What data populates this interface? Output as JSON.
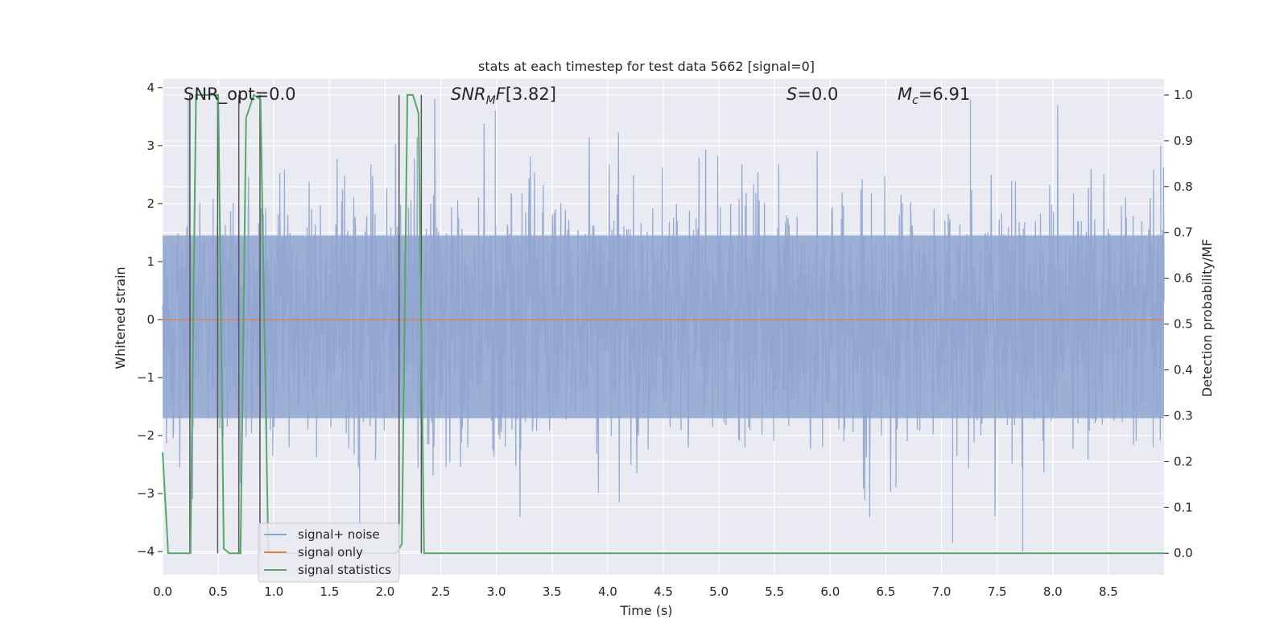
{
  "chart_data": {
    "type": "line",
    "title": "stats at each timestep for test data 5662 [signal=0]",
    "xlabel": "Time (s)",
    "ylabel": "Whitened strain",
    "y2label": "Detection probability/MF",
    "xlim": [
      0.0,
      9.0
    ],
    "ylim": [
      -4.4,
      4.15
    ],
    "y2lim": [
      -0.047,
      1.035
    ],
    "x_ticks": [
      "0.0",
      "0.5",
      "1.0",
      "1.5",
      "2.0",
      "2.5",
      "3.0",
      "3.5",
      "4.0",
      "4.5",
      "5.0",
      "5.5",
      "6.0",
      "6.5",
      "7.0",
      "7.5",
      "8.0",
      "8.5"
    ],
    "y_ticks": [
      "4",
      "3",
      "2",
      "1",
      "0",
      "−1",
      "−2",
      "−3",
      "−4"
    ],
    "y2_ticks": [
      "1.0",
      "0.9",
      "0.8",
      "0.7",
      "0.6",
      "0.5",
      "0.4",
      "0.3",
      "0.2",
      "0.1",
      "0.0"
    ],
    "grid": true,
    "legend_position": "lower-left",
    "annotations": {
      "snr_opt": "SNR_opt=0.0",
      "snr_mf": "[3.82]",
      "s_value": "=0.0",
      "mc_value": "=6.91"
    },
    "series": [
      {
        "name": "signal+ noise",
        "color": "#8fa5cf",
        "description_axis": "left",
        "noise_envelope": {
          "x_start": 0.0,
          "x_end": 9.0,
          "dense_band": [
            -1.7,
            1.45
          ],
          "typical_peak": [
            -3.4,
            3.8
          ]
        },
        "notable_spikes": [
          {
            "x": 0.23,
            "y": 3.8
          },
          {
            "x": 0.27,
            "y": -3.1
          },
          {
            "x": 1.77,
            "y": -3.6
          },
          {
            "x": 7.26,
            "y": 3.8
          },
          {
            "x": 7.73,
            "y": -4.0
          },
          {
            "x": 7.1,
            "y": -3.85
          },
          {
            "x": 2.99,
            "y": 3.6
          },
          {
            "x": 8.97,
            "y": 3.0
          }
        ]
      },
      {
        "name": "signal only",
        "color": "#dd8452",
        "description_axis": "left",
        "x": [
          0.0,
          9.0
        ],
        "y": [
          0.0,
          0.0
        ]
      },
      {
        "name": "signal statistics",
        "color": "#55a868",
        "description_axis": "right",
        "x": [
          0.0,
          0.05,
          0.25,
          0.3,
          0.5,
          0.55,
          0.6,
          0.68,
          0.7,
          0.75,
          0.82,
          0.88,
          0.95,
          1.0,
          2.1,
          2.15,
          2.2,
          2.25,
          2.3,
          2.35,
          4.5,
          9.0
        ],
        "y": [
          0.22,
          0.0,
          0.0,
          1.0,
          1.0,
          0.01,
          0.0,
          0.0,
          0.0,
          0.95,
          1.0,
          0.99,
          0.0,
          0.0,
          0.0,
          0.02,
          1.0,
          1.0,
          0.96,
          0.0,
          0.0,
          0.0
        ]
      }
    ],
    "vertical_markers": [
      0.245,
      0.495,
      0.685,
      0.875,
      2.125,
      2.325
    ]
  },
  "legend": {
    "items": [
      {
        "label": "signal+ noise",
        "color": "#8fa5cf"
      },
      {
        "label": "signal only",
        "color": "#dd8452"
      },
      {
        "label": "signal statistics",
        "color": "#55a868"
      }
    ]
  },
  "colors": {
    "plot_background": "#eaeaf2",
    "grid": "#ffffff",
    "marker_line": "#555555"
  }
}
